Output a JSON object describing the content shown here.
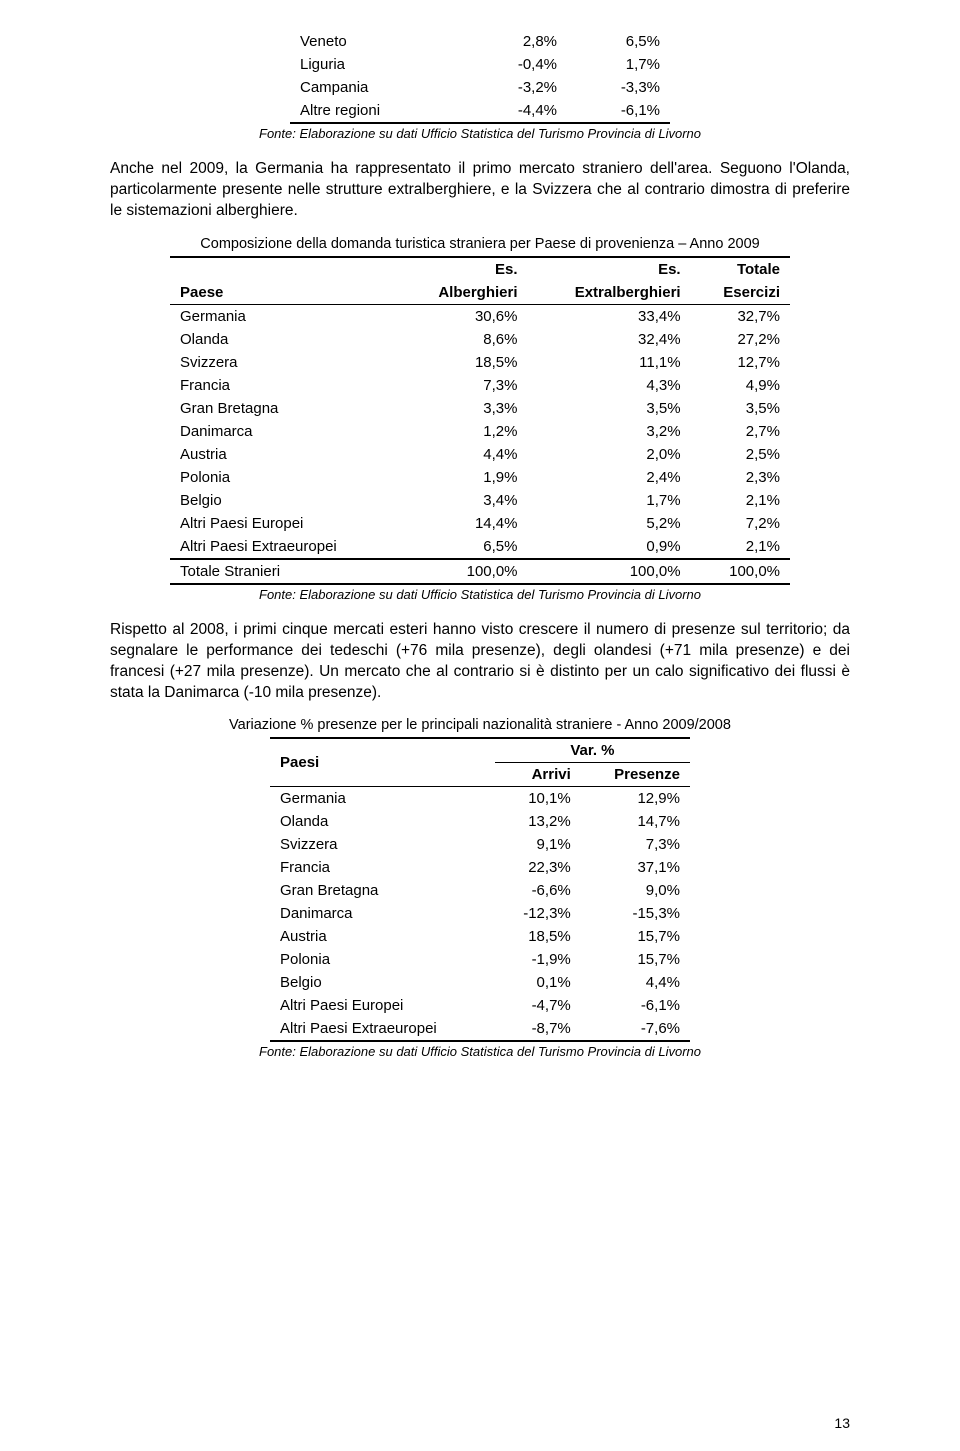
{
  "table1": {
    "rows": [
      {
        "label": "Veneto",
        "v1": "2,8%",
        "v2": "6,5%"
      },
      {
        "label": "Liguria",
        "v1": "-0,4%",
        "v2": "1,7%"
      },
      {
        "label": "Campania",
        "v1": "-3,2%",
        "v2": "-3,3%"
      },
      {
        "label": "Altre regioni",
        "v1": "-4,4%",
        "v2": "-6,1%"
      }
    ],
    "fonte": "Fonte: Elaborazione su dati Ufficio Statistica del Turismo Provincia di Livorno"
  },
  "para1": "Anche nel 2009, la Germania ha rappresentato il primo mercato straniero dell'area. Seguono l'Olanda, particolarmente presente nelle strutture extralberghiere, e la Svizzera che al contrario dimostra di preferire le sistemazioni alberghiere.",
  "table2": {
    "caption": "Composizione della domanda turistica straniera per Paese di provenienza – Anno 2009",
    "header": {
      "paese": "Paese",
      "c1a": "Es.",
      "c1b": "Alberghieri",
      "c2a": "Es.",
      "c2b": "Extralberghieri",
      "c3a": "Totale",
      "c3b": "Esercizi"
    },
    "rows": [
      {
        "label": "Germania",
        "v1": "30,6%",
        "v2": "33,4%",
        "v3": "32,7%"
      },
      {
        "label": "Olanda",
        "v1": "8,6%",
        "v2": "32,4%",
        "v3": "27,2%"
      },
      {
        "label": "Svizzera",
        "v1": "18,5%",
        "v2": "11,1%",
        "v3": "12,7%"
      },
      {
        "label": "Francia",
        "v1": "7,3%",
        "v2": "4,3%",
        "v3": "4,9%"
      },
      {
        "label": "Gran Bretagna",
        "v1": "3,3%",
        "v2": "3,5%",
        "v3": "3,5%"
      },
      {
        "label": "Danimarca",
        "v1": "1,2%",
        "v2": "3,2%",
        "v3": "2,7%"
      },
      {
        "label": "Austria",
        "v1": "4,4%",
        "v2": "2,0%",
        "v3": "2,5%"
      },
      {
        "label": "Polonia",
        "v1": "1,9%",
        "v2": "2,4%",
        "v3": "2,3%"
      },
      {
        "label": "Belgio",
        "v1": "3,4%",
        "v2": "1,7%",
        "v3": "2,1%"
      },
      {
        "label": "Altri Paesi Europei",
        "v1": "14,4%",
        "v2": "5,2%",
        "v3": "7,2%"
      },
      {
        "label": "Altri Paesi Extraeuropei",
        "v1": "6,5%",
        "v2": "0,9%",
        "v3": "2,1%"
      }
    ],
    "total": {
      "label": "Totale Stranieri",
      "v1": "100,0%",
      "v2": "100,0%",
      "v3": "100,0%"
    },
    "fonte": "Fonte: Elaborazione su dati Ufficio Statistica del Turismo Provincia di Livorno"
  },
  "para2": "Rispetto al 2008, i primi cinque mercati esteri hanno visto crescere il numero di presenze sul territorio; da segnalare le performance dei tedeschi (+76 mila presenze), degli olandesi (+71 mila presenze) e dei francesi (+27 mila presenze). Un mercato che al contrario si è distinto per un calo significativo dei flussi è stata  la Danimarca (-10 mila presenze).",
  "table3": {
    "caption": "Variazione % presenze per le principali nazionalità straniere - Anno 2009/2008",
    "header": {
      "paesi": "Paesi",
      "var": "Var. %",
      "arrivi": "Arrivi",
      "presenze": "Presenze"
    },
    "rows": [
      {
        "label": "Germania",
        "v1": "10,1%",
        "v2": "12,9%"
      },
      {
        "label": "Olanda",
        "v1": "13,2%",
        "v2": "14,7%"
      },
      {
        "label": "Svizzera",
        "v1": "9,1%",
        "v2": "7,3%"
      },
      {
        "label": "Francia",
        "v1": "22,3%",
        "v2": "37,1%"
      },
      {
        "label": "Gran Bretagna",
        "v1": "-6,6%",
        "v2": "9,0%"
      },
      {
        "label": "Danimarca",
        "v1": "-12,3%",
        "v2": "-15,3%"
      },
      {
        "label": "Austria",
        "v1": "18,5%",
        "v2": "15,7%"
      },
      {
        "label": "Polonia",
        "v1": "-1,9%",
        "v2": "15,7%"
      },
      {
        "label": "Belgio",
        "v1": "0,1%",
        "v2": "4,4%"
      },
      {
        "label": "Altri Paesi Europei",
        "v1": "-4,7%",
        "v2": "-6,1%"
      },
      {
        "label": "Altri Paesi Extraeuropei",
        "v1": "-8,7%",
        "v2": "-7,6%"
      }
    ],
    "fonte": "Fonte: Elaborazione su dati Ufficio Statistica del Turismo Provincia di Livorno"
  },
  "pagenum": "13"
}
